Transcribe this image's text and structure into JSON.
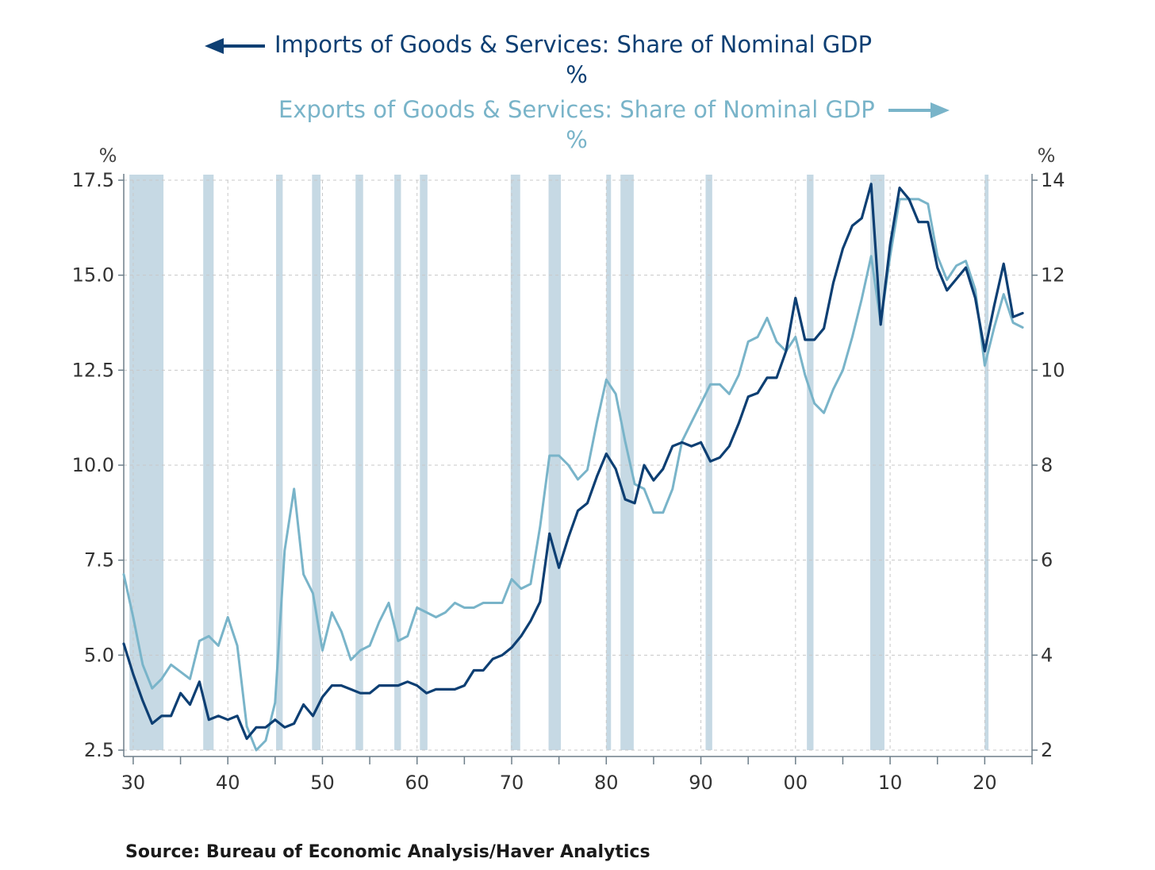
{
  "legend": {
    "imports_label": "Imports of Goods & Services: Share of Nominal GDP",
    "imports_unit": "%",
    "exports_label": "Exports of Goods & Services: Share of Nominal GDP",
    "exports_unit": "%"
  },
  "source": "Source:  Bureau of Economic Analysis/Haver Analytics",
  "colors": {
    "imports": "#0d3f73",
    "exports": "#79b4c9",
    "recession": "#c6d9e4",
    "axis": "#333333"
  },
  "chart_data": {
    "type": "line",
    "xlim": [
      1929,
      2025
    ],
    "x_ticks": [
      {
        "value": 1930,
        "label": "30"
      },
      {
        "value": 1940,
        "label": "40"
      },
      {
        "value": 1950,
        "label": "50"
      },
      {
        "value": 1960,
        "label": "60"
      },
      {
        "value": 1970,
        "label": "70"
      },
      {
        "value": 1980,
        "label": "80"
      },
      {
        "value": 1990,
        "label": "90"
      },
      {
        "value": 2000,
        "label": "00"
      },
      {
        "value": 2010,
        "label": "10"
      },
      {
        "value": 2020,
        "label": "20"
      }
    ],
    "y_left": {
      "unit": "%",
      "ylim": [
        2.5,
        17.5
      ],
      "ticks": [
        {
          "value": 2.5,
          "label": "2.5"
        },
        {
          "value": 5.0,
          "label": "5.0"
        },
        {
          "value": 7.5,
          "label": "7.5"
        },
        {
          "value": 10.0,
          "label": "10.0"
        },
        {
          "value": 12.5,
          "label": "12.5"
        },
        {
          "value": 15.0,
          "label": "15.0"
        },
        {
          "value": 17.5,
          "label": "17.5"
        }
      ]
    },
    "y_right": {
      "unit": "%",
      "ylim": [
        2,
        14
      ],
      "ticks": [
        {
          "value": 2,
          "label": "2"
        },
        {
          "value": 4,
          "label": "4"
        },
        {
          "value": 6,
          "label": "6"
        },
        {
          "value": 8,
          "label": "8"
        },
        {
          "value": 10,
          "label": "10"
        },
        {
          "value": 12,
          "label": "12"
        },
        {
          "value": 14,
          "label": "14"
        }
      ]
    },
    "grid": true,
    "recessions": [
      [
        1929.6,
        1933.2
      ],
      [
        1937.4,
        1938.5
      ],
      [
        1945.1,
        1945.8
      ],
      [
        1948.9,
        1949.8
      ],
      [
        1953.5,
        1954.3
      ],
      [
        1957.6,
        1958.3
      ],
      [
        1960.3,
        1961.1
      ],
      [
        1969.9,
        1970.9
      ],
      [
        1973.9,
        1975.2
      ],
      [
        1980.0,
        1980.5
      ],
      [
        1981.5,
        1982.9
      ],
      [
        1990.5,
        1991.2
      ],
      [
        2001.2,
        2001.9
      ],
      [
        2007.9,
        2009.4
      ],
      [
        2020.0,
        2020.4
      ]
    ],
    "series": [
      {
        "name": "Imports of Goods & Services: Share of Nominal GDP",
        "axis": "left",
        "x": [
          1929,
          1930,
          1931,
          1932,
          1933,
          1934,
          1935,
          1936,
          1937,
          1938,
          1939,
          1940,
          1941,
          1942,
          1943,
          1944,
          1945,
          1946,
          1947,
          1948,
          1949,
          1950,
          1951,
          1952,
          1953,
          1954,
          1955,
          1956,
          1957,
          1958,
          1959,
          1960,
          1961,
          1962,
          1963,
          1964,
          1965,
          1966,
          1967,
          1968,
          1969,
          1970,
          1971,
          1972,
          1973,
          1974,
          1975,
          1976,
          1977,
          1978,
          1979,
          1980,
          1981,
          1982,
          1983,
          1984,
          1985,
          1986,
          1987,
          1988,
          1989,
          1990,
          1991,
          1992,
          1993,
          1994,
          1995,
          1996,
          1997,
          1998,
          1999,
          2000,
          2001,
          2002,
          2003,
          2004,
          2005,
          2006,
          2007,
          2008,
          2009,
          2010,
          2011,
          2012,
          2013,
          2014,
          2015,
          2016,
          2017,
          2018,
          2019,
          2020,
          2021,
          2022,
          2023,
          2024
        ],
        "values": [
          5.3,
          4.5,
          3.8,
          3.2,
          3.4,
          3.4,
          4.0,
          3.7,
          4.3,
          3.3,
          3.4,
          3.3,
          3.4,
          2.8,
          3.1,
          3.1,
          3.3,
          3.1,
          3.2,
          3.7,
          3.4,
          3.9,
          4.2,
          4.2,
          4.1,
          4.0,
          4.0,
          4.2,
          4.2,
          4.2,
          4.3,
          4.2,
          4.0,
          4.1,
          4.1,
          4.1,
          4.2,
          4.6,
          4.6,
          4.9,
          5.0,
          5.2,
          5.5,
          5.9,
          6.4,
          8.2,
          7.3,
          8.1,
          8.8,
          9.0,
          9.7,
          10.3,
          9.9,
          9.1,
          9.0,
          10.0,
          9.6,
          9.9,
          10.5,
          10.6,
          10.5,
          10.6,
          10.1,
          10.2,
          10.5,
          11.1,
          11.8,
          11.9,
          12.3,
          12.3,
          13.0,
          14.4,
          13.3,
          13.3,
          13.6,
          14.8,
          15.7,
          16.3,
          16.5,
          17.4,
          13.7,
          15.8,
          17.3,
          17.0,
          16.4,
          16.4,
          15.2,
          14.6,
          14.9,
          15.2,
          14.4,
          13.0,
          14.2,
          15.3,
          13.9,
          14.0
        ]
      },
      {
        "name": "Exports of Goods & Services: Share of Nominal GDP",
        "axis": "right",
        "x": [
          1929,
          1930,
          1931,
          1932,
          1933,
          1934,
          1935,
          1936,
          1937,
          1938,
          1939,
          1940,
          1941,
          1942,
          1943,
          1944,
          1945,
          1946,
          1947,
          1948,
          1949,
          1950,
          1951,
          1952,
          1953,
          1954,
          1955,
          1956,
          1957,
          1958,
          1959,
          1960,
          1961,
          1962,
          1963,
          1964,
          1965,
          1966,
          1967,
          1968,
          1969,
          1970,
          1971,
          1972,
          1973,
          1974,
          1975,
          1976,
          1977,
          1978,
          1979,
          1980,
          1981,
          1982,
          1983,
          1984,
          1985,
          1986,
          1987,
          1988,
          1989,
          1990,
          1991,
          1992,
          1993,
          1994,
          1995,
          1996,
          1997,
          1998,
          1999,
          2000,
          2001,
          2002,
          2003,
          2004,
          2005,
          2006,
          2007,
          2008,
          2009,
          2010,
          2011,
          2012,
          2013,
          2014,
          2015,
          2016,
          2017,
          2018,
          2019,
          2020,
          2021,
          2022,
          2023,
          2024
        ],
        "values": [
          5.7,
          4.8,
          3.8,
          3.3,
          3.5,
          3.8,
          3.65,
          3.5,
          4.3,
          4.4,
          4.2,
          4.8,
          4.2,
          2.5,
          2.0,
          2.2,
          3.0,
          6.2,
          7.5,
          5.7,
          5.3,
          4.1,
          4.9,
          4.5,
          3.9,
          4.1,
          4.2,
          4.7,
          5.1,
          4.3,
          4.4,
          5.0,
          4.9,
          4.8,
          4.9,
          5.1,
          5.0,
          5.0,
          5.1,
          5.1,
          5.1,
          5.6,
          5.4,
          5.5,
          6.7,
          8.2,
          8.2,
          8.0,
          7.7,
          7.9,
          8.9,
          9.8,
          9.5,
          8.5,
          7.6,
          7.5,
          7.0,
          7.0,
          7.5,
          8.5,
          8.9,
          9.3,
          9.7,
          9.7,
          9.5,
          9.9,
          10.6,
          10.7,
          11.1,
          10.6,
          10.4,
          10.7,
          9.9,
          9.3,
          9.1,
          9.6,
          10.0,
          10.7,
          11.5,
          12.4,
          11.0,
          12.4,
          13.6,
          13.6,
          13.6,
          13.5,
          12.4,
          11.9,
          12.2,
          12.3,
          11.7,
          10.1,
          10.9,
          11.6,
          11.0,
          10.9
        ]
      }
    ]
  }
}
